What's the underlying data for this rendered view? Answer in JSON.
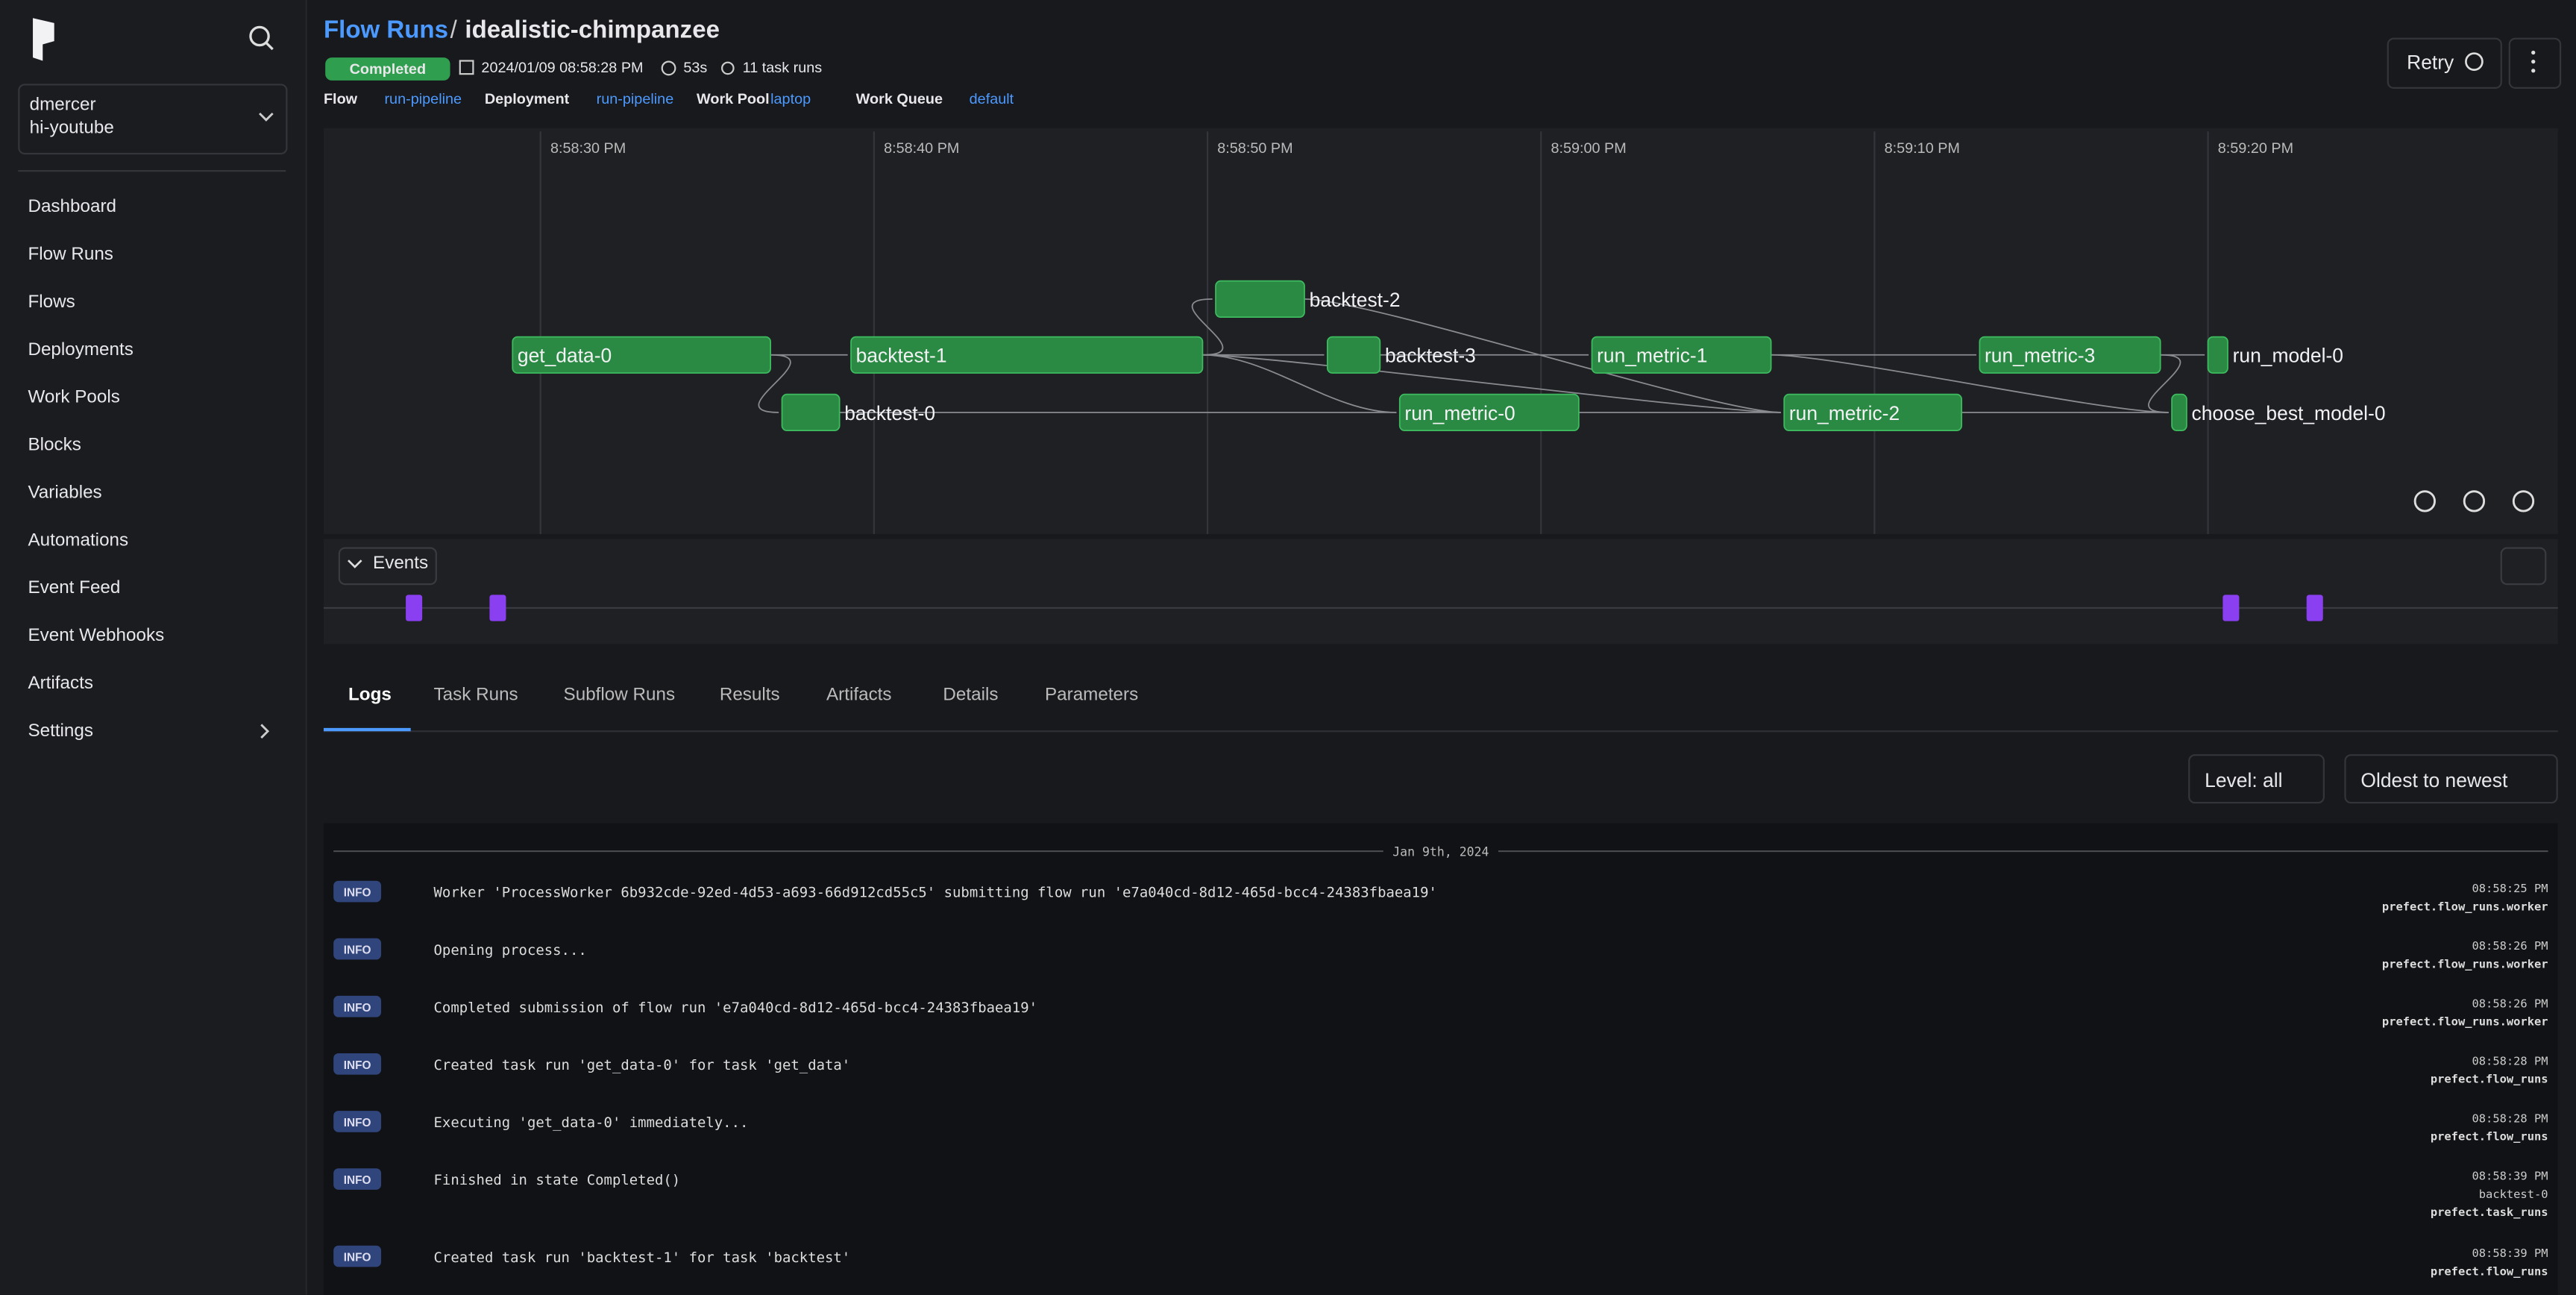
{
  "sidebar": {
    "user": "dmercer",
    "workspace": "hi-youtube",
    "nav": [
      "Dashboard",
      "Flow Runs",
      "Flows",
      "Deployments",
      "Work Pools",
      "Blocks",
      "Variables",
      "Automations",
      "Event Feed",
      "Event Webhooks",
      "Artifacts",
      "Settings"
    ]
  },
  "header": {
    "breadcrumb": "Flow Runs",
    "separator": "/",
    "title": "idealistic-chimpanzee",
    "state": "Completed",
    "start": "2024/01/09 08:58:28 PM",
    "duration": "53s",
    "task_runs": "11 task runs",
    "meta": [
      {
        "label": "Flow",
        "value": "run-pipeline"
      },
      {
        "label": "Deployment",
        "value": "run-pipeline"
      },
      {
        "label": "Work Pool",
        "value": "laptop"
      },
      {
        "label": "Work Queue",
        "value": "default"
      }
    ],
    "retry": "Retry"
  },
  "graph": {
    "time_labels": [
      "8:58:30 PM",
      "8:58:40 PM",
      "8:58:50 PM",
      "8:59:00 PM",
      "8:59:10 PM",
      "8:59:20 PM"
    ],
    "nodes": [
      "get_data-0",
      "backtest-1",
      "backtest-0",
      "backtest-2",
      "backtest-3",
      "run_metric-0",
      "run_metric-1",
      "run_metric-2",
      "run_metric-3",
      "run_model-0",
      "choose_best_model-0"
    ]
  },
  "events": {
    "label": "Events"
  },
  "tabs": [
    "Logs",
    "Task Runs",
    "Subflow Runs",
    "Results",
    "Artifacts",
    "Details",
    "Parameters"
  ],
  "logs": {
    "level_filter": "Level: all",
    "order": "Oldest to newest",
    "date": "Jan 9th, 2024",
    "entries": [
      {
        "level": "INFO",
        "message": "Worker 'ProcessWorker 6b932cde-92ed-4d53-a693-66d912cd55c5' submitting flow run 'e7a040cd-8d12-465d-bcc4-24383fbaea19'",
        "time": "08:58:25 PM",
        "logger": "prefect.flow_runs.worker"
      },
      {
        "level": "INFO",
        "message": "Opening process...",
        "time": "08:58:26 PM",
        "logger": "prefect.flow_runs.worker"
      },
      {
        "level": "INFO",
        "message": "Completed submission of flow run 'e7a040cd-8d12-465d-bcc4-24383fbaea19'",
        "time": "08:58:26 PM",
        "logger": "prefect.flow_runs.worker"
      },
      {
        "level": "INFO",
        "message": "Created task run 'get_data-0' for task 'get_data'",
        "time": "08:58:28 PM",
        "logger": "prefect.flow_runs"
      },
      {
        "level": "INFO",
        "message": "Executing 'get_data-0' immediately...",
        "time": "08:58:28 PM",
        "logger": "prefect.flow_runs"
      },
      {
        "level": "INFO",
        "message": "Finished in state Completed()",
        "time": "08:58:39 PM",
        "task": "backtest-0",
        "logger": "prefect.task_runs"
      },
      {
        "level": "INFO",
        "message": "Created task run 'backtest-1' for task 'backtest'",
        "time": "08:58:39 PM",
        "logger": "prefect.flow_runs"
      }
    ]
  }
}
